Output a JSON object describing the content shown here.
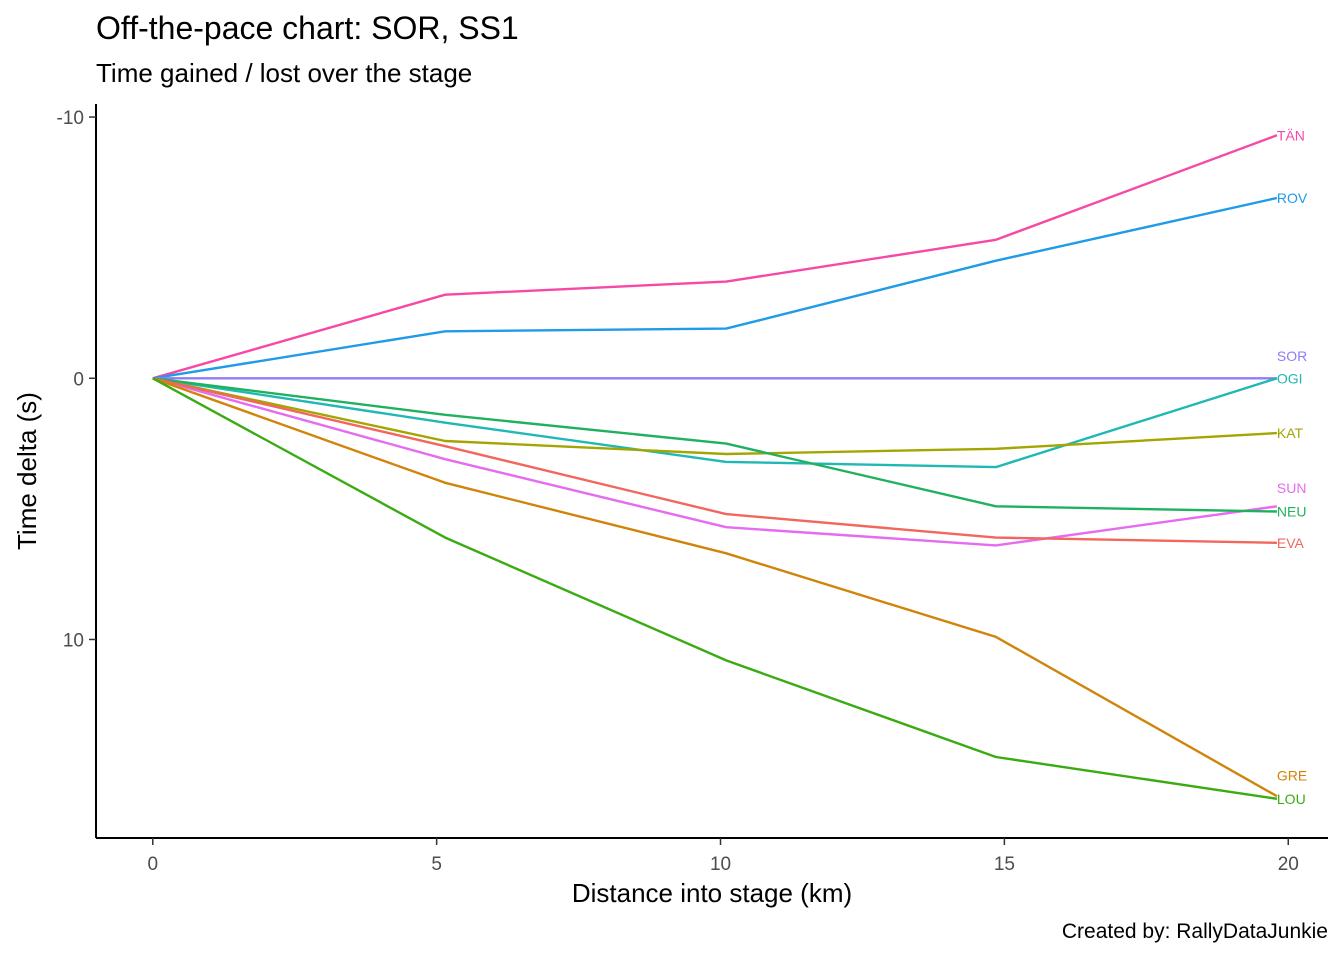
{
  "chart_data": {
    "type": "line",
    "title": "Off-the-pace chart: SOR, SS1",
    "subtitle": "Time gained / lost over the stage",
    "xlabel": "Distance into stage (km)",
    "ylabel": "Time delta (s)",
    "caption": "Created by: RallyDataJunkie",
    "xlim": [
      -1,
      20.7
    ],
    "ylim": [
      -10.5,
      17.6
    ],
    "y_reversed": true,
    "x_ticks": [
      0,
      5,
      10,
      15,
      20
    ],
    "y_ticks": [
      -10,
      0,
      10
    ],
    "x": [
      0,
      5.15,
      10.1,
      14.85,
      19.8
    ],
    "series": [
      {
        "name": "TÄN",
        "color": "#F748A5",
        "values": [
          0,
          -3.2,
          -3.7,
          -5.3,
          -9.3
        ]
      },
      {
        "name": "ROV",
        "color": "#1F9BE8",
        "values": [
          0,
          -1.8,
          -1.9,
          -4.5,
          -6.9
        ]
      },
      {
        "name": "SOR",
        "color": "#8F7CF7",
        "values": [
          0,
          0,
          0,
          0,
          0
        ]
      },
      {
        "name": "OGI",
        "color": "#1FB8B5",
        "values": [
          0,
          1.7,
          3.2,
          3.4,
          0
        ]
      },
      {
        "name": "KAT",
        "color": "#A3A500",
        "values": [
          0,
          2.4,
          2.9,
          2.7,
          2.1
        ]
      },
      {
        "name": "SUN",
        "color": "#E56BF0",
        "values": [
          0,
          3.1,
          5.7,
          6.4,
          4.9
        ]
      },
      {
        "name": "NEU",
        "color": "#20B15E",
        "values": [
          0,
          1.4,
          2.5,
          4.9,
          5.1
        ]
      },
      {
        "name": "EVA",
        "color": "#F2665E",
        "values": [
          0,
          2.6,
          5.2,
          6.1,
          6.3
        ]
      },
      {
        "name": "GRE",
        "color": "#D0840A",
        "values": [
          0,
          4.0,
          6.7,
          9.9,
          16.0
        ]
      },
      {
        "name": "LOU",
        "color": "#3AAB13",
        "values": [
          0,
          6.1,
          10.8,
          14.5,
          16.1
        ]
      }
    ],
    "end_labels": [
      {
        "name": "TÄN",
        "value": -9.3
      },
      {
        "name": "ROV",
        "value": -6.9
      },
      {
        "name": "SOR",
        "value": -0.85
      },
      {
        "name": "OGI",
        "value": 0
      },
      {
        "name": "KAT",
        "value": 2.1
      },
      {
        "name": "SUN",
        "value": 4.2
      },
      {
        "name": "NEU",
        "value": 5.1
      },
      {
        "name": "EVA",
        "value": 6.3
      },
      {
        "name": "GRE",
        "value": 15.2
      },
      {
        "name": "LOU",
        "value": 16.1
      }
    ]
  }
}
